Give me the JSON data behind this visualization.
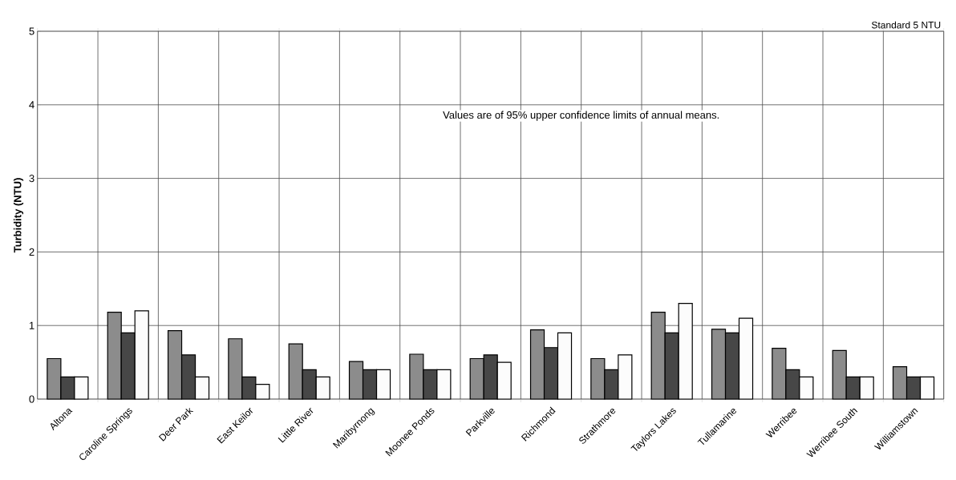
{
  "chart_data": {
    "type": "bar",
    "ylabel": "Turbidity (NTU)",
    "categories": [
      "Altona",
      "Caroline Springs",
      "Deer Park",
      "East Keilor",
      "Little River",
      "Maribyrnong",
      "Moonee Ponds",
      "Parkville",
      "Richmond",
      "Strathmore",
      "Taylors Lakes",
      "Tullamarine",
      "Werribee",
      "Werribee South",
      "Williamstown"
    ],
    "series": [
      {
        "color": "#8c8c8c",
        "values": [
          0.55,
          1.18,
          0.93,
          0.82,
          0.75,
          0.51,
          0.61,
          0.55,
          0.94,
          0.55,
          1.18,
          0.95,
          0.69,
          0.66,
          0.44
        ]
      },
      {
        "color": "#474747",
        "values": [
          0.3,
          0.9,
          0.6,
          0.3,
          0.4,
          0.4,
          0.4,
          0.6,
          0.7,
          0.4,
          0.9,
          0.9,
          0.4,
          0.3,
          0.3
        ]
      },
      {
        "color": "#fcfcfc",
        "values": [
          0.3,
          1.2,
          0.3,
          0.2,
          0.3,
          0.4,
          0.4,
          0.5,
          0.9,
          0.6,
          1.3,
          1.1,
          0.3,
          0.3,
          0.3
        ]
      }
    ],
    "ylim": [
      0,
      5
    ],
    "yticks": [
      0,
      1,
      2,
      3,
      4,
      5
    ],
    "grid": true,
    "annotations": [
      "Standard 5 NTU",
      "Values are of 95% upper confidence limits of annual means."
    ]
  }
}
